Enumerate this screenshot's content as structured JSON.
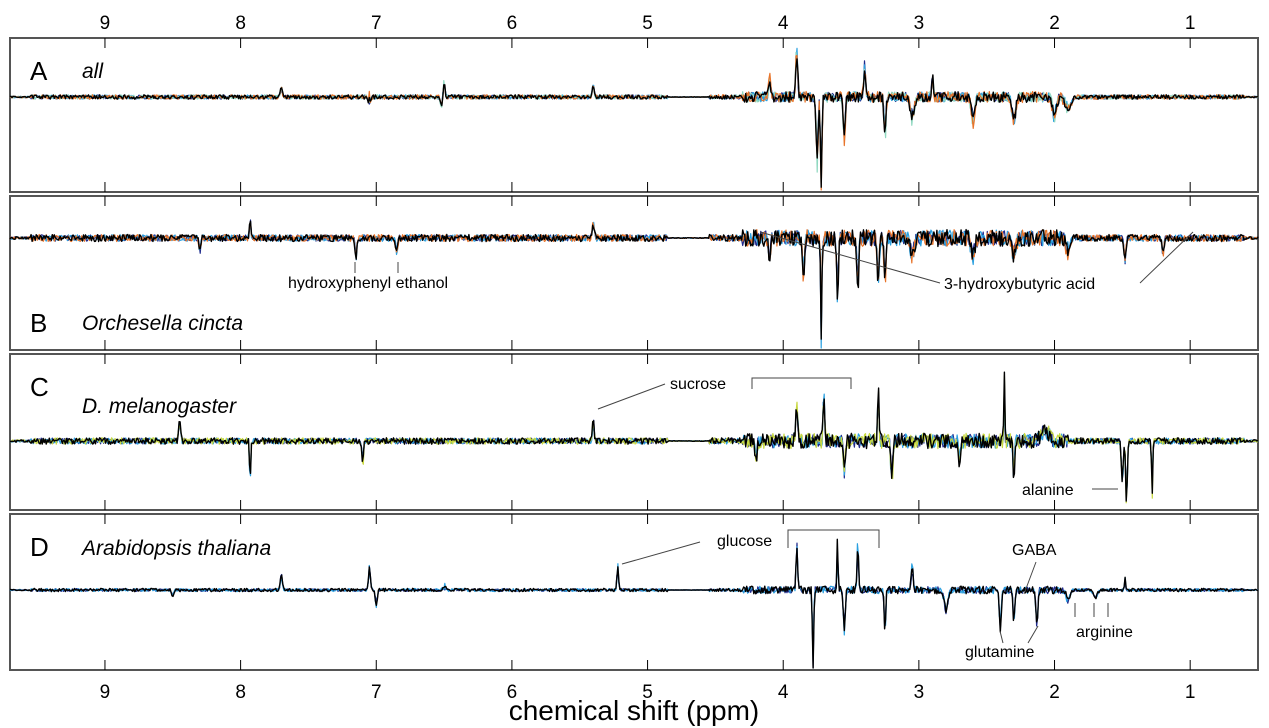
{
  "chart_data": {
    "type": "line",
    "xlabel": "chemical shift (ppm)",
    "x_reversed": true,
    "xlim": [
      9.7,
      0.5
    ],
    "x_ticks": [
      9,
      8,
      7,
      6,
      5,
      4,
      3,
      2,
      1
    ],
    "grid": false,
    "panels": [
      {
        "letter": "A",
        "name": "all",
        "series_colors": [
          "#1f2a8c",
          "#2aa0e0",
          "#8fd8c0",
          "#e8742a",
          "#000000"
        ],
        "annotations": []
      },
      {
        "letter": "B",
        "name": "Orchesella cincta",
        "series_colors": [
          "#1f2a8c",
          "#2aa0e0",
          "#e8742a",
          "#000000"
        ],
        "annotations": [
          {
            "label": "hydroxyphenyl ethanol",
            "ppm": [
              7.15,
              6.85
            ]
          },
          {
            "label": "3-hydroxybutyric acid",
            "ppm": [
              4.15,
              1.2
            ]
          }
        ]
      },
      {
        "letter": "C",
        "name": "D. melanogaster",
        "series_colors": [
          "#1f2a8c",
          "#2aa0e0",
          "#c8d840",
          "#000000"
        ],
        "annotations": [
          {
            "label": "sucrose",
            "ppm": [
              5.4,
              4.2,
              3.5
            ]
          },
          {
            "label": "alanine",
            "ppm": [
              1.47
            ]
          }
        ]
      },
      {
        "letter": "D",
        "name": "Arabidopsis thaliana",
        "series_colors": [
          "#1f2a8c",
          "#2aa0e0",
          "#000000"
        ],
        "annotations": [
          {
            "label": "glucose",
            "ppm": [
              5.22,
              3.97,
              3.3
            ]
          },
          {
            "label": "GABA",
            "ppm": [
              2.28
            ]
          },
          {
            "label": "glutamine",
            "ppm": [
              2.4,
              2.13
            ]
          },
          {
            "label": "arginine",
            "ppm": [
              1.9,
              1.7,
              1.6
            ]
          }
        ]
      }
    ]
  }
}
